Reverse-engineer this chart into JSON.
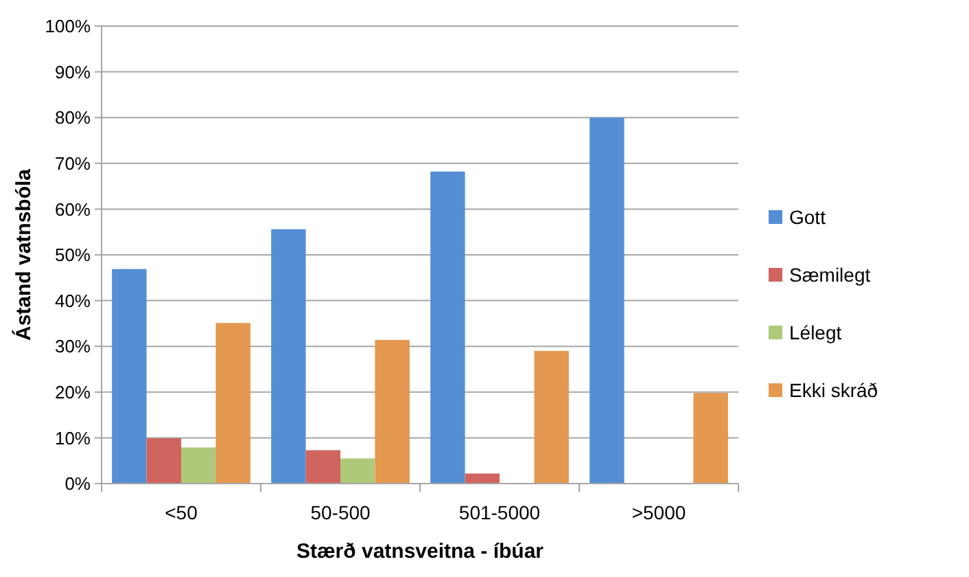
{
  "chart_data": {
    "type": "bar",
    "xlabel": "Stærð vatnsveitna - íbúar",
    "ylabel": "Ástand vatnsbóla",
    "categories": [
      "<50",
      "50-500",
      "501-5000",
      ">5000"
    ],
    "series": [
      {
        "name": "Gott",
        "color": "#558ed5",
        "values": [
          46.9,
          55.6,
          68.2,
          80
        ]
      },
      {
        "name": "Sæmilegt",
        "color": "#d0655f",
        "values": [
          9.9,
          7.3,
          2.2,
          0
        ]
      },
      {
        "name": "Lélegt",
        "color": "#afc97a",
        "values": [
          7.9,
          5.5,
          0,
          0
        ]
      },
      {
        "name": "Ekki skráð",
        "color": "#e5984f",
        "values": [
          35.1,
          31.4,
          29,
          19.8
        ]
      }
    ],
    "ylim": [
      0,
      100
    ],
    "yticks": [
      {
        "value": 0,
        "label": "0%"
      },
      {
        "value": 10,
        "label": "10%"
      },
      {
        "value": 20,
        "label": "20%"
      },
      {
        "value": 30,
        "label": "30%"
      },
      {
        "value": 40,
        "label": "40%"
      },
      {
        "value": 50,
        "label": "50%"
      },
      {
        "value": 60,
        "label": "60%"
      },
      {
        "value": 70,
        "label": "70%"
      },
      {
        "value": 80,
        "label": "80%"
      },
      {
        "value": 90,
        "label": "90%"
      },
      {
        "value": 100,
        "label": "100%"
      }
    ],
    "grid": "y",
    "legend": "right"
  }
}
